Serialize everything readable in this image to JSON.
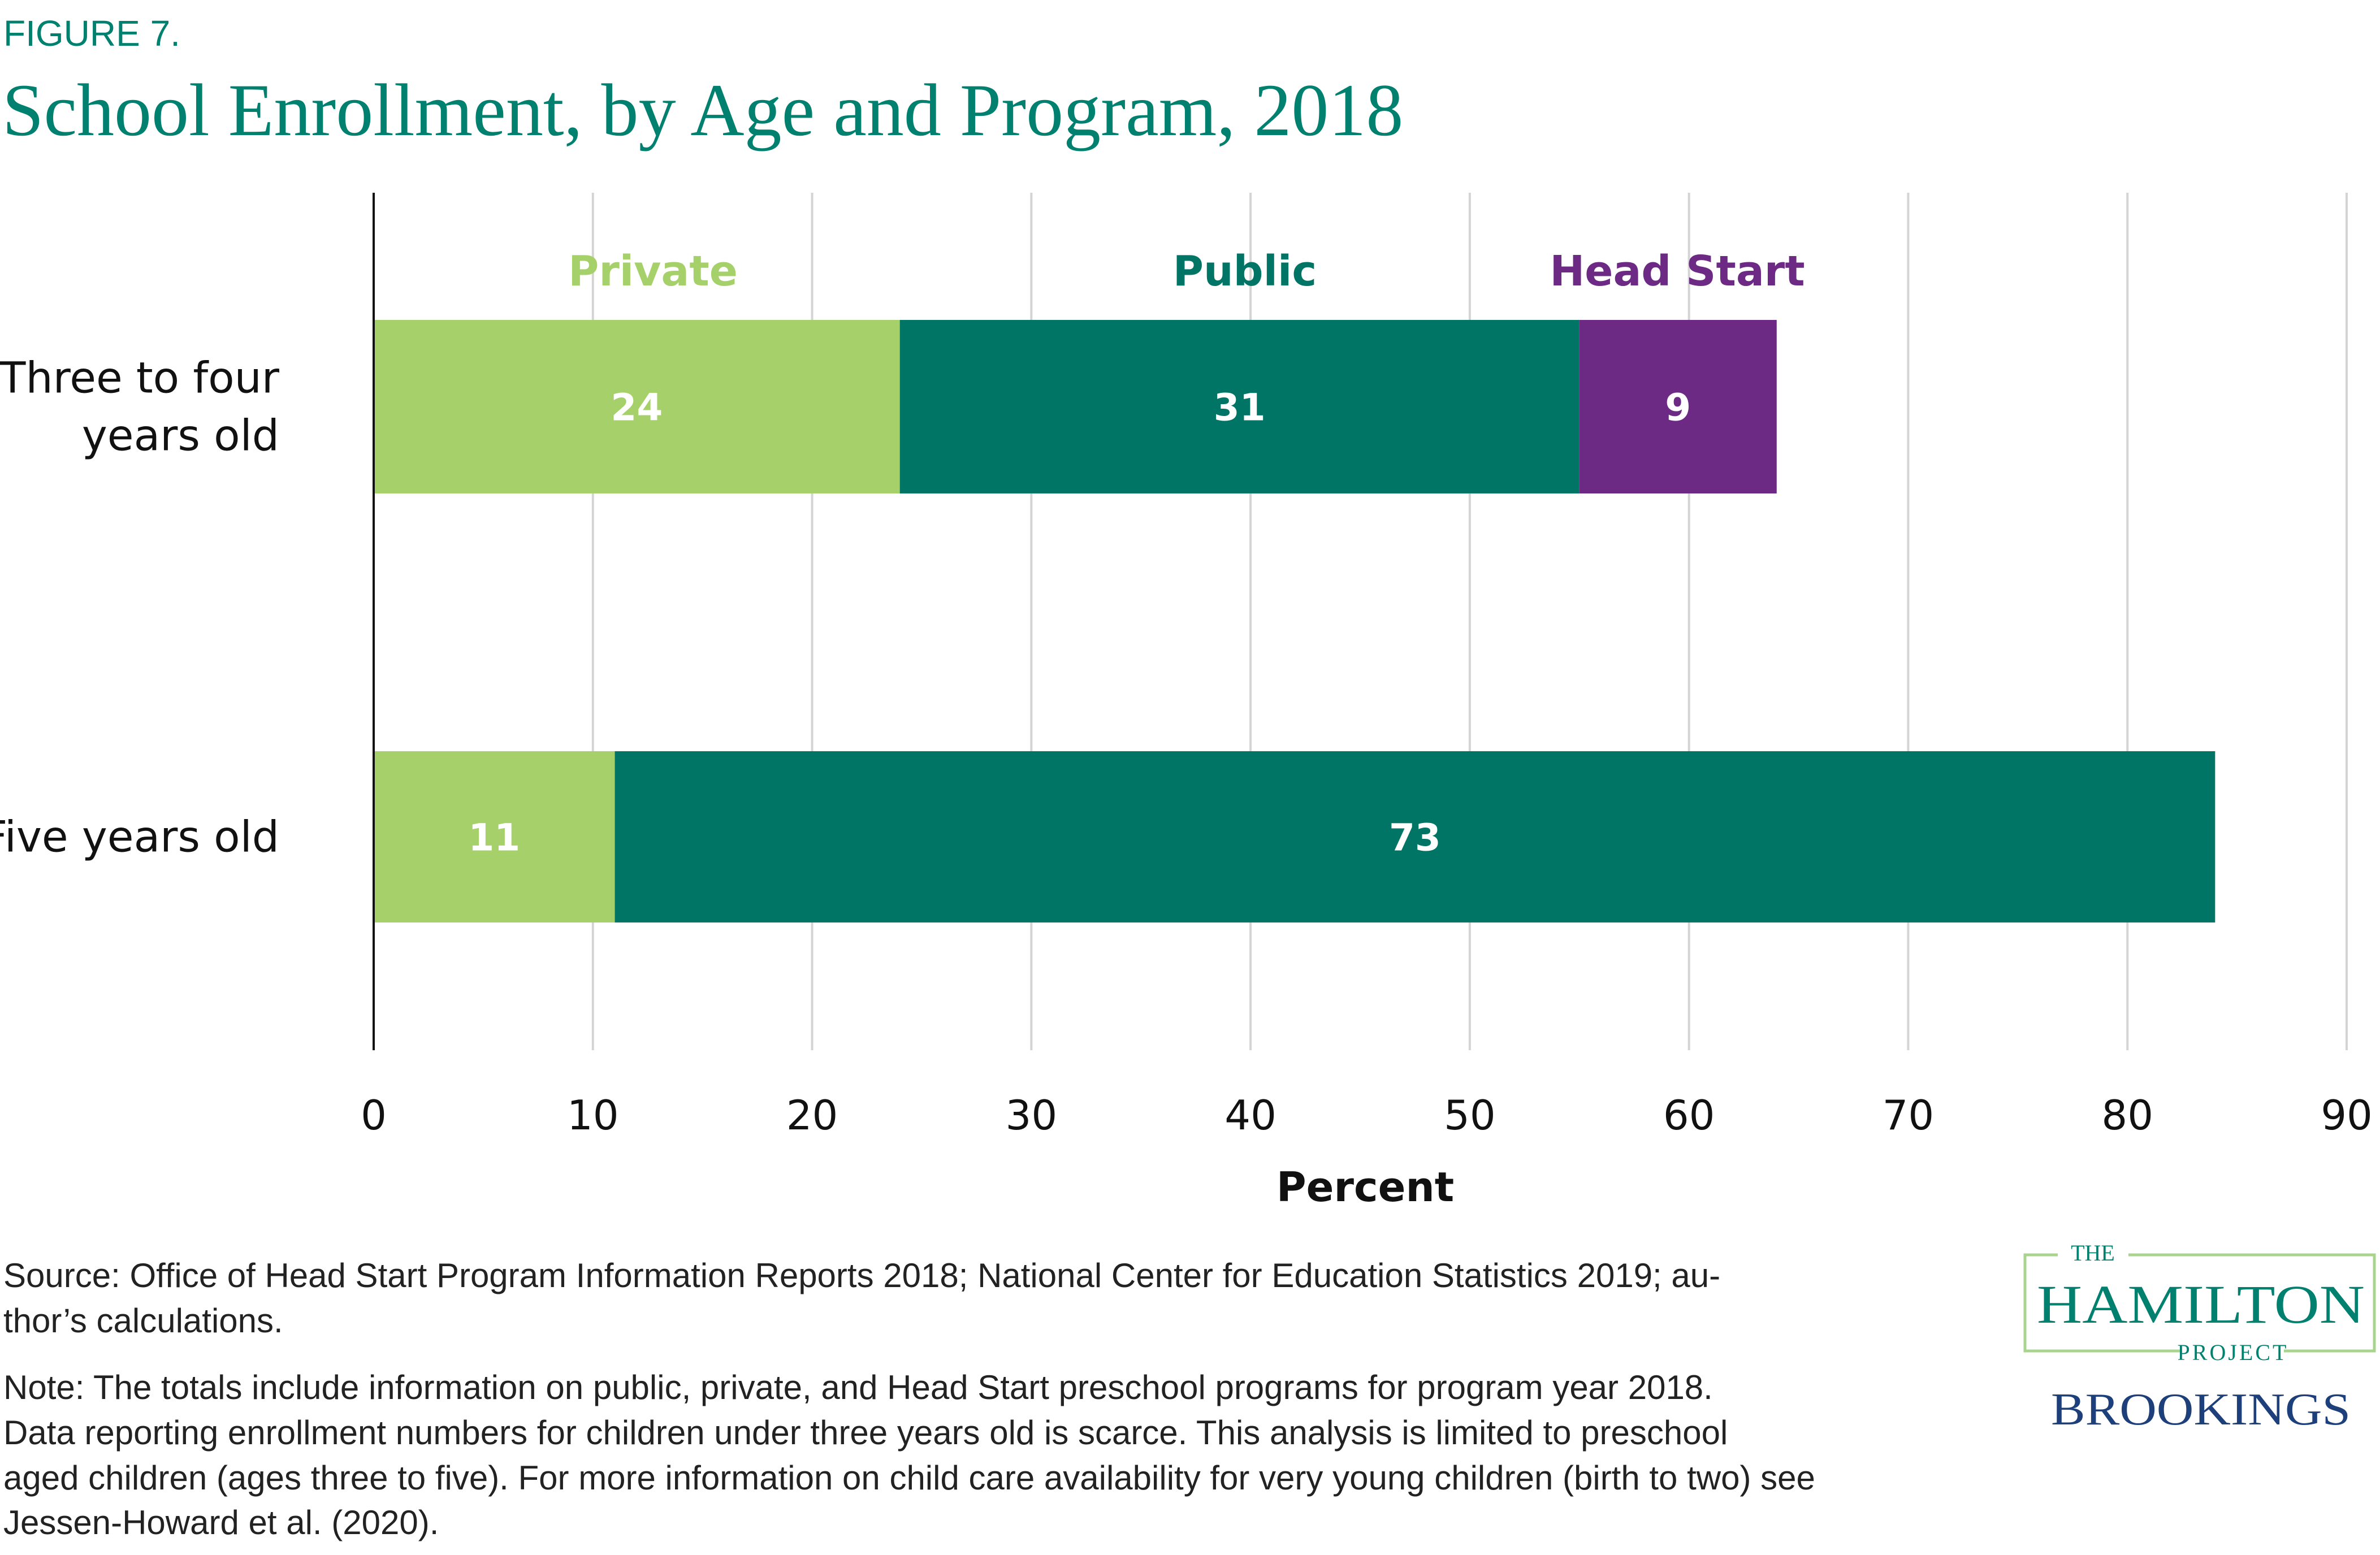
{
  "header": {
    "figure_label": "FIGURE 7.",
    "title": "School Enrollment, by Age and Program, 2018"
  },
  "chart_data": {
    "type": "bar",
    "orientation": "horizontal",
    "stacked": true,
    "title": "School Enrollment, by Age and Program, 2018",
    "xlabel": "Percent",
    "ylabel": "",
    "xlim": [
      0,
      90
    ],
    "xticks": [
      0,
      10,
      20,
      30,
      40,
      50,
      60,
      70,
      80,
      90
    ],
    "grid": "vertical",
    "legend_placement": "top (inline above bars)",
    "categories": [
      "Three to four years old",
      "Five years old"
    ],
    "category_lines": [
      [
        "Three to four",
        "years old"
      ],
      [
        "Five years old"
      ]
    ],
    "series": [
      {
        "name": "Private",
        "color": "#a6d16a",
        "values": [
          24,
          11
        ]
      },
      {
        "name": "Public",
        "color": "#007565",
        "values": [
          31,
          73
        ]
      },
      {
        "name": "Head Start",
        "color": "#6c2a84",
        "values": [
          9,
          null
        ]
      }
    ],
    "legend_label_colors": {
      "Private": "#a6d16a",
      "Public": "#007565",
      "Head Start": "#6c2a84"
    }
  },
  "footer": {
    "source_lines": [
      "Source:  Office of Head Start Program Information Reports 2018; National Center for Education Statistics 2019; au-",
      "thor’s calculations."
    ],
    "note_lines": [
      "Note: The totals include information on public, private, and Head Start preschool programs for program year 2018.",
      "Data reporting enrollment numbers for children under three years old is scarce. This analysis is limited to preschool",
      "aged children (ages three to five). For more information on child care availability for very young children (birth to two) see",
      "Jessen-Howard et al. (2020)."
    ]
  },
  "logo": {
    "the": "THE",
    "hamilton": "HAMILTON",
    "project": "PROJECT",
    "brookings": "BROOKINGS",
    "colors": {
      "teal": "#00806f",
      "frame": "#a8d48e",
      "navy": "#1d3f7a"
    }
  }
}
